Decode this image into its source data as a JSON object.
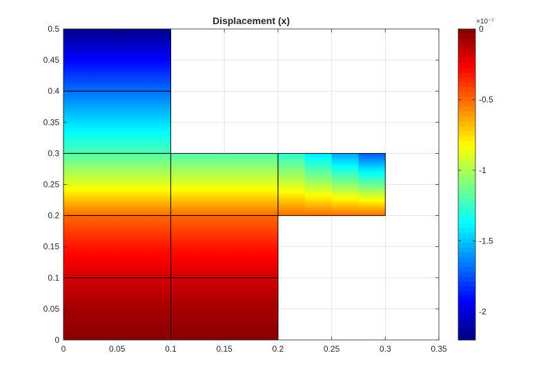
{
  "chart_data": {
    "type": "heatmap",
    "title": "Displacement (x)",
    "xlabel": "",
    "ylabel": "",
    "xlim": [
      0,
      0.35
    ],
    "ylim": [
      0,
      0.5
    ],
    "grid": true,
    "x_ticks": [
      0,
      0.05,
      0.1,
      0.15,
      0.2,
      0.25,
      0.3,
      0.35
    ],
    "x_tick_labels": [
      "0",
      "0.05",
      "0.1",
      "0.15",
      "0.2",
      "0.25",
      "0.3",
      "0.35"
    ],
    "y_ticks": [
      0,
      0.05,
      0.1,
      0.15,
      0.2,
      0.25,
      0.3,
      0.35,
      0.4,
      0.45,
      0.5
    ],
    "y_tick_labels": [
      "0",
      "0.05",
      "0.1",
      "0.15",
      "0.2",
      "0.25",
      "0.3",
      "0.35",
      "0.4",
      "0.45",
      "0.5"
    ],
    "colormap": "jet",
    "colorbar": {
      "range": [
        -2.2e-07,
        0
      ],
      "exponent_label": "×10⁻⁷",
      "ticks": [
        0,
        -0.5,
        -1,
        -1.5,
        -2
      ],
      "tick_labels": [
        "0",
        "-0.5",
        "-1",
        "-1.5",
        "-2"
      ]
    },
    "mesh_elements": [
      {
        "x": [
          0,
          0.1
        ],
        "y": [
          0,
          0.1
        ]
      },
      {
        "x": [
          0.1,
          0.2
        ],
        "y": [
          0,
          0.1
        ]
      },
      {
        "x": [
          0,
          0.1
        ],
        "y": [
          0.1,
          0.2
        ]
      },
      {
        "x": [
          0.1,
          0.2
        ],
        "y": [
          0.1,
          0.2
        ]
      },
      {
        "x": [
          0,
          0.1
        ],
        "y": [
          0.2,
          0.3
        ]
      },
      {
        "x": [
          0.1,
          0.2
        ],
        "y": [
          0.2,
          0.3
        ]
      },
      {
        "x": [
          0.2,
          0.3
        ],
        "y": [
          0.2,
          0.3
        ]
      },
      {
        "x": [
          0,
          0.1
        ],
        "y": [
          0.3,
          0.4
        ]
      },
      {
        "x": [
          0,
          0.1
        ],
        "y": [
          0.4,
          0.5
        ]
      }
    ],
    "field_profile": {
      "description_of_values": "approximate displacement (x) in units of 1e-7 along y",
      "y": [
        0,
        0.05,
        0.1,
        0.15,
        0.2,
        0.25,
        0.3,
        0.35,
        0.4,
        0.45,
        0.5
      ],
      "value": [
        -0.02,
        -0.08,
        -0.18,
        -0.32,
        -0.5,
        -0.88,
        -1.2,
        -1.45,
        -1.68,
        -1.92,
        -2.18
      ]
    }
  }
}
